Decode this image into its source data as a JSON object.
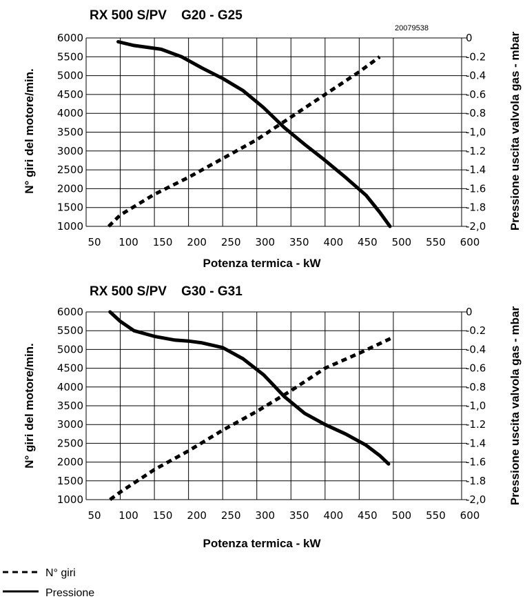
{
  "legend": {
    "items": [
      {
        "label": "N° giri",
        "style": "dashed",
        "color": "#000000"
      },
      {
        "label": "Pressione",
        "style": "solid",
        "color": "#000000"
      }
    ]
  },
  "chart_data": [
    {
      "type": "line",
      "title": "RX 500 S/PV    G20 - G25",
      "code": "20079538",
      "xlabel": "Potenza termica - kW",
      "ylabel": "N° giri del motore/min.",
      "y2label": "Pressione uscita valvola gas - mbar",
      "xlim": [
        50,
        600
      ],
      "ylim": [
        1000,
        6000
      ],
      "y2lim": [
        -2.0,
        0
      ],
      "grid": true,
      "x_ticks": [
        "50",
        "100",
        "150",
        "200",
        "250",
        "300",
        "350",
        "400",
        "450",
        "500",
        "550",
        "600"
      ],
      "y_ticks": [
        "1000",
        "1500",
        "2000",
        "2500",
        "3000",
        "3500",
        "4000",
        "4500",
        "5000",
        "5500",
        "6000"
      ],
      "y2_ticks": [
        "-2,0",
        "-1.8",
        "-1.6",
        "-1.4",
        "-1.2",
        "-1,0",
        "-0.8",
        "-0.6",
        "-0.4",
        "-0.2",
        "0"
      ],
      "series": [
        {
          "name": "N° giri",
          "axis": "left",
          "style": "dashed",
          "x": [
            83,
            100,
            150,
            200,
            250,
            300,
            350,
            400,
            450,
            480
          ],
          "y": [
            1000,
            1300,
            1850,
            2300,
            2800,
            3300,
            3900,
            4500,
            5100,
            5500
          ]
        },
        {
          "name": "Pressione",
          "axis": "right",
          "style": "solid",
          "x": [
            97,
            120,
            160,
            190,
            220,
            250,
            280,
            310,
            340,
            370,
            400,
            430,
            460,
            480,
            495
          ],
          "y": [
            -0.04,
            -0.08,
            -0.12,
            -0.2,
            -0.32,
            -0.43,
            -0.56,
            -0.74,
            -0.95,
            -1.13,
            -1.3,
            -1.48,
            -1.67,
            -1.85,
            -2.0
          ]
        }
      ]
    },
    {
      "type": "line",
      "title": "RX 500 S/PV    G30 - G31",
      "xlabel": "Potenza termica - kW",
      "ylabel": "N° giri del motore/min.",
      "y2label": "Pressione uscita valvola gas - mbar",
      "xlim": [
        50,
        600
      ],
      "ylim": [
        1000,
        6000
      ],
      "y2lim": [
        -2.0,
        0
      ],
      "grid": true,
      "x_ticks": [
        "50",
        "100",
        "150",
        "200",
        "250",
        "300",
        "350",
        "400",
        "450",
        "500",
        "550",
        "600"
      ],
      "y_ticks": [
        "1000",
        "1500",
        "2000",
        "2500",
        "3000",
        "3500",
        "4000",
        "4500",
        "5000",
        "5500",
        "6000"
      ],
      "y2_ticks": [
        "-2,0",
        "-1.8",
        "-1.6",
        "-1.4",
        "-1.2",
        "-1,0",
        "-0.8",
        "-0.6",
        "-0.4",
        "-0.2",
        "0"
      ],
      "series": [
        {
          "name": "N° giri",
          "axis": "left",
          "style": "dashed",
          "x": [
            85,
            100,
            150,
            200,
            250,
            300,
            350,
            400,
            450,
            497
          ],
          "y": [
            1000,
            1200,
            1800,
            2300,
            2850,
            3350,
            3900,
            4500,
            4900,
            5300
          ]
        },
        {
          "name": "Pressione",
          "axis": "right",
          "style": "solid",
          "x": [
            85,
            100,
            120,
            150,
            180,
            200,
            220,
            250,
            280,
            310,
            340,
            370,
            400,
            430,
            460,
            480,
            493
          ],
          "y": [
            0.0,
            -0.1,
            -0.2,
            -0.26,
            -0.3,
            -0.31,
            -0.33,
            -0.38,
            -0.5,
            -0.67,
            -0.9,
            -1.08,
            -1.2,
            -1.3,
            -1.42,
            -1.53,
            -1.62
          ]
        }
      ]
    }
  ]
}
